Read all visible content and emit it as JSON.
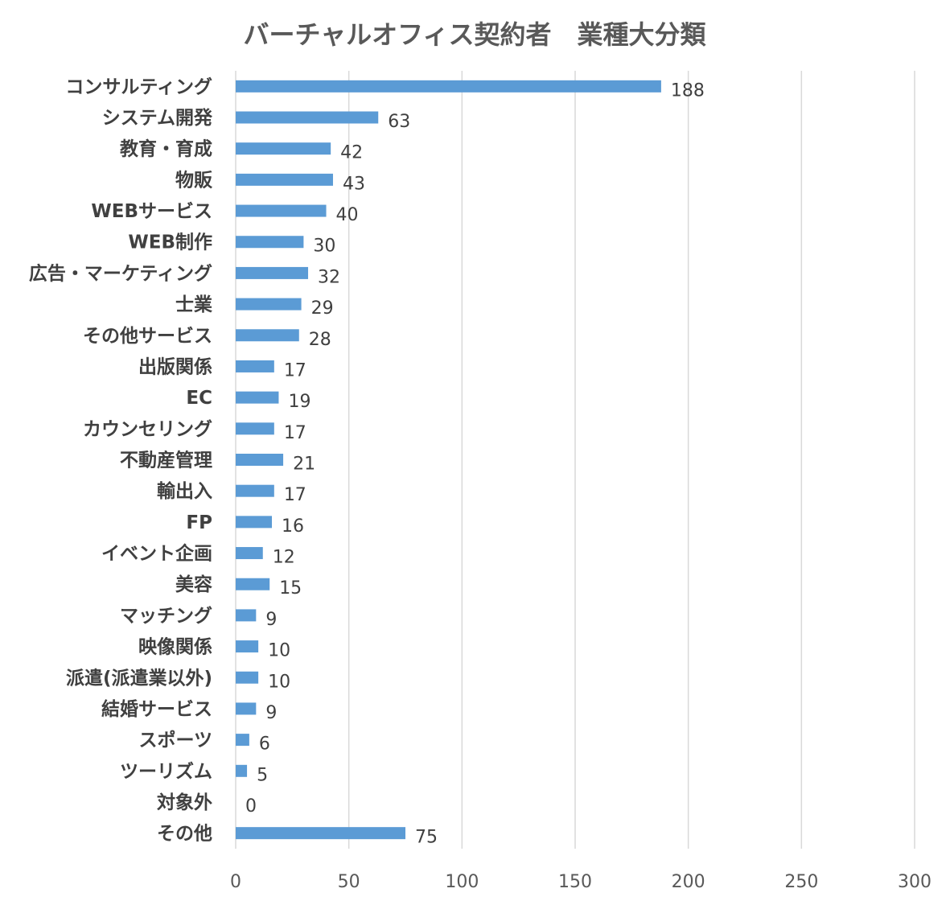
{
  "chart_data": {
    "type": "bar",
    "orientation": "horizontal",
    "title": "バーチャルオフィス契約者　業種大分類",
    "xlabel": "",
    "ylabel": "",
    "xlim": [
      0,
      300
    ],
    "xticks": [
      0,
      50,
      100,
      150,
      200,
      250,
      300
    ],
    "grid": true,
    "legend": "none",
    "bar_color": "#5b9bd5",
    "categories": [
      "コンサルティング",
      "システム開発",
      "教育・育成",
      "物販",
      "WEBサービス",
      "WEB制作",
      "広告・マーケティング",
      "士業",
      "その他サービス",
      "出版関係",
      "EC",
      "カウンセリング",
      "不動産管理",
      "輸出入",
      "FP",
      "イベント企画",
      "美容",
      "マッチング",
      "映像関係",
      "派遣(派遣業以外)",
      "結婚サービス",
      "スポーツ",
      "ツーリズム",
      "対象外",
      "その他"
    ],
    "values": [
      188,
      63,
      42,
      43,
      40,
      30,
      32,
      29,
      28,
      17,
      19,
      17,
      21,
      17,
      16,
      12,
      15,
      9,
      10,
      10,
      9,
      6,
      5,
      0,
      75
    ]
  }
}
